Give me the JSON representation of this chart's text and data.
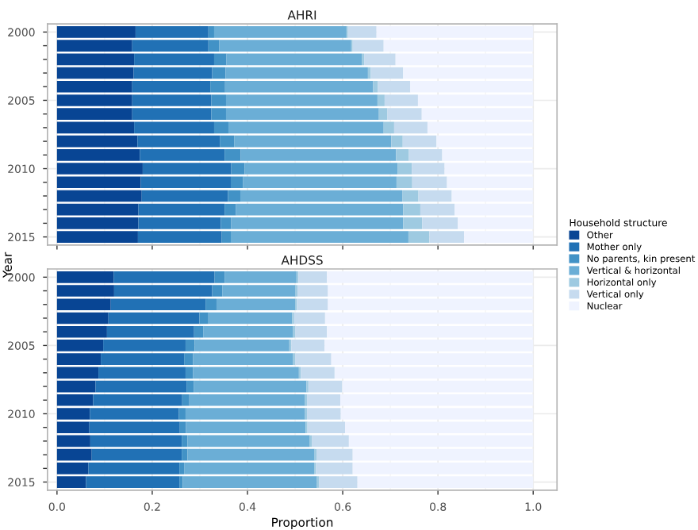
{
  "chart_data": [
    {
      "type": "bar",
      "orientation": "horizontal",
      "stacked": true,
      "title": "AHRI",
      "ylabel": "Year",
      "legend_title": "Household structure",
      "legend": "right",
      "grid": true,
      "tick_labels": "y",
      "categories": [
        "2000",
        null,
        null,
        null,
        null,
        "2005",
        null,
        null,
        null,
        null,
        "2010",
        null,
        null,
        null,
        null,
        "2015"
      ],
      "xlim": [
        -0.02,
        1.05
      ],
      "xticks": [
        0,
        0.2,
        0.4,
        0.6,
        0.8,
        1
      ],
      "series": [
        {
          "name": "Other",
          "color": "#084594",
          "values": [
            0.165,
            0.158,
            0.162,
            0.161,
            0.158,
            0.158,
            0.158,
            0.162,
            0.169,
            0.174,
            0.18,
            0.176,
            0.178,
            0.171,
            0.171,
            0.17
          ]
        },
        {
          "name": "Mother only",
          "color": "#2171b5",
          "values": [
            0.153,
            0.16,
            0.168,
            0.165,
            0.164,
            0.166,
            0.166,
            0.168,
            0.173,
            0.178,
            0.186,
            0.189,
            0.181,
            0.181,
            0.173,
            0.176
          ]
        },
        {
          "name": "No parents, kin present",
          "color": "#4292c6",
          "values": [
            0.012,
            0.023,
            0.026,
            0.028,
            0.031,
            0.031,
            0.031,
            0.03,
            0.03,
            0.034,
            0.028,
            0.026,
            0.026,
            0.024,
            0.022,
            0.019
          ]
        },
        {
          "name": "Vertical & horizontal",
          "color": "#6baed6",
          "values": [
            0.278,
            0.277,
            0.284,
            0.299,
            0.311,
            0.318,
            0.321,
            0.326,
            0.33,
            0.326,
            0.321,
            0.322,
            0.34,
            0.351,
            0.361,
            0.373
          ]
        },
        {
          "name": "Horizontal only",
          "color": "#9ecae1",
          "values": [
            0.003,
            0.003,
            0.005,
            0.006,
            0.01,
            0.015,
            0.018,
            0.022,
            0.024,
            0.027,
            0.03,
            0.033,
            0.034,
            0.036,
            0.04,
            0.044
          ]
        },
        {
          "name": "Vertical only",
          "color": "#c6dbef",
          "values": [
            0.06,
            0.065,
            0.066,
            0.068,
            0.068,
            0.07,
            0.072,
            0.07,
            0.071,
            0.07,
            0.069,
            0.073,
            0.07,
            0.072,
            0.075,
            0.073
          ]
        },
        {
          "name": "Nuclear",
          "color": "#eff3ff",
          "values": [
            0.329,
            0.314,
            0.289,
            0.273,
            0.258,
            0.242,
            0.234,
            0.222,
            0.203,
            0.191,
            0.186,
            0.181,
            0.171,
            0.165,
            0.158,
            0.145
          ]
        }
      ]
    },
    {
      "type": "bar",
      "orientation": "horizontal",
      "stacked": true,
      "title": "AHDSS",
      "xlabel": "Proportion",
      "grid": true,
      "categories": [
        "2000",
        null,
        null,
        null,
        null,
        "2005",
        null,
        null,
        null,
        null,
        "2010",
        null,
        null,
        null,
        null,
        "2015"
      ],
      "xlim": [
        -0.02,
        1.05
      ],
      "xticks": [
        {
          "value": 0,
          "label": "0.0"
        },
        0.2,
        0.4,
        0.6,
        0.8,
        {
          "value": 1,
          "label": "1.0"
        }
      ],
      "series": [
        {
          "color": "#084594",
          "values": [
            0.119,
            0.12,
            0.113,
            0.108,
            0.105,
            0.097,
            0.092,
            0.087,
            0.081,
            0.076,
            0.069,
            0.068,
            0.07,
            0.073,
            0.066,
            0.061
          ]
        },
        {
          "color": "#2171b5",
          "values": [
            0.212,
            0.206,
            0.199,
            0.191,
            0.183,
            0.173,
            0.175,
            0.183,
            0.191,
            0.187,
            0.187,
            0.19,
            0.192,
            0.189,
            0.191,
            0.196
          ]
        },
        {
          "color": "#4292c6",
          "values": [
            0.021,
            0.021,
            0.023,
            0.019,
            0.019,
            0.019,
            0.019,
            0.016,
            0.015,
            0.015,
            0.014,
            0.013,
            0.012,
            0.012,
            0.01,
            0.007
          ]
        },
        {
          "color": "#6baed6",
          "values": [
            0.151,
            0.154,
            0.165,
            0.176,
            0.189,
            0.199,
            0.21,
            0.222,
            0.237,
            0.243,
            0.251,
            0.251,
            0.257,
            0.267,
            0.273,
            0.282
          ]
        },
        {
          "color": "#9ecae1",
          "values": [
            0.004,
            0.004,
            0.004,
            0.004,
            0.004,
            0.004,
            0.004,
            0.004,
            0.004,
            0.004,
            0.004,
            0.004,
            0.004,
            0.004,
            0.004,
            0.004
          ]
        },
        {
          "color": "#c6dbef",
          "values": [
            0.06,
            0.064,
            0.065,
            0.065,
            0.067,
            0.07,
            0.076,
            0.071,
            0.071,
            0.07,
            0.071,
            0.079,
            0.078,
            0.076,
            0.077,
            0.081
          ]
        },
        {
          "color": "#eff3ff",
          "values": [
            0.433,
            0.431,
            0.431,
            0.437,
            0.433,
            0.438,
            0.424,
            0.417,
            0.401,
            0.405,
            0.404,
            0.395,
            0.387,
            0.379,
            0.379,
            0.369
          ]
        }
      ]
    }
  ]
}
